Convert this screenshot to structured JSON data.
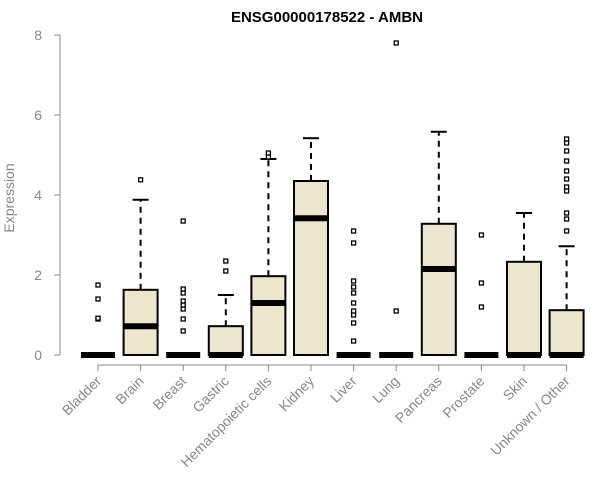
{
  "chart_data": {
    "type": "boxplot",
    "title": "ENSG00000178522 - AMBN",
    "xlabel": "",
    "ylabel": "Expression",
    "ylim": [
      0,
      8
    ],
    "yticks": [
      "0",
      "2",
      "4",
      "6",
      "8"
    ],
    "grid": false,
    "box_fill": "#ede6cf",
    "box_stroke": "#000000",
    "categories": [
      "Bladder",
      "Brain",
      "Breast",
      "Gastric",
      "Hematopoietic cells",
      "Kidney",
      "Liver",
      "Lung",
      "Pancreas",
      "Prostate",
      "Skin",
      "Unknown / Other"
    ],
    "boxes": [
      {
        "q1": 0,
        "median": 0,
        "q3": 0,
        "whisker_low": 0,
        "whisker_high": 0,
        "outliers": [
          0.9,
          0.92,
          1.4,
          1.75
        ]
      },
      {
        "q1": 0,
        "median": 0.72,
        "q3": 1.63,
        "whisker_low": 0,
        "whisker_high": 3.88,
        "outliers": [
          4.38
        ]
      },
      {
        "q1": 0,
        "median": 0,
        "q3": 0,
        "whisker_low": 0,
        "whisker_high": 0,
        "outliers": [
          0.6,
          0.9,
          1.15,
          1.25,
          1.35,
          1.55,
          1.65,
          3.35
        ]
      },
      {
        "q1": 0,
        "median": 0,
        "q3": 0.72,
        "whisker_low": 0,
        "whisker_high": 1.5,
        "outliers": [
          2.1,
          2.35
        ]
      },
      {
        "q1": 0,
        "median": 1.3,
        "q3": 1.97,
        "whisker_low": 0,
        "whisker_high": 4.9,
        "outliers": [
          4.95,
          5.05
        ]
      },
      {
        "q1": 0,
        "median": 3.42,
        "q3": 4.35,
        "whisker_low": 0,
        "whisker_high": 5.42,
        "outliers": []
      },
      {
        "q1": 0,
        "median": 0,
        "q3": 0,
        "whisker_low": 0,
        "whisker_high": 0,
        "outliers": [
          0.35,
          0.8,
          1.0,
          1.1,
          1.3,
          1.55,
          1.7,
          1.85,
          2.8,
          3.1
        ]
      },
      {
        "q1": 0,
        "median": 0,
        "q3": 0,
        "whisker_low": 0,
        "whisker_high": 0,
        "outliers": [
          1.1,
          7.8
        ]
      },
      {
        "q1": 0,
        "median": 2.15,
        "q3": 3.28,
        "whisker_low": 0,
        "whisker_high": 5.58,
        "outliers": []
      },
      {
        "q1": 0,
        "median": 0,
        "q3": 0,
        "whisker_low": 0,
        "whisker_high": 0,
        "outliers": [
          1.2,
          1.8,
          3.0
        ]
      },
      {
        "q1": 0,
        "median": 0,
        "q3": 2.33,
        "whisker_low": 0,
        "whisker_high": 3.55,
        "outliers": []
      },
      {
        "q1": 0,
        "median": 0,
        "q3": 1.12,
        "whisker_low": 0,
        "whisker_high": 2.72,
        "outliers": [
          3.1,
          3.4,
          3.55,
          4.1,
          4.2,
          4.4,
          4.6,
          4.85,
          5.1,
          5.3,
          5.4
        ]
      }
    ]
  }
}
